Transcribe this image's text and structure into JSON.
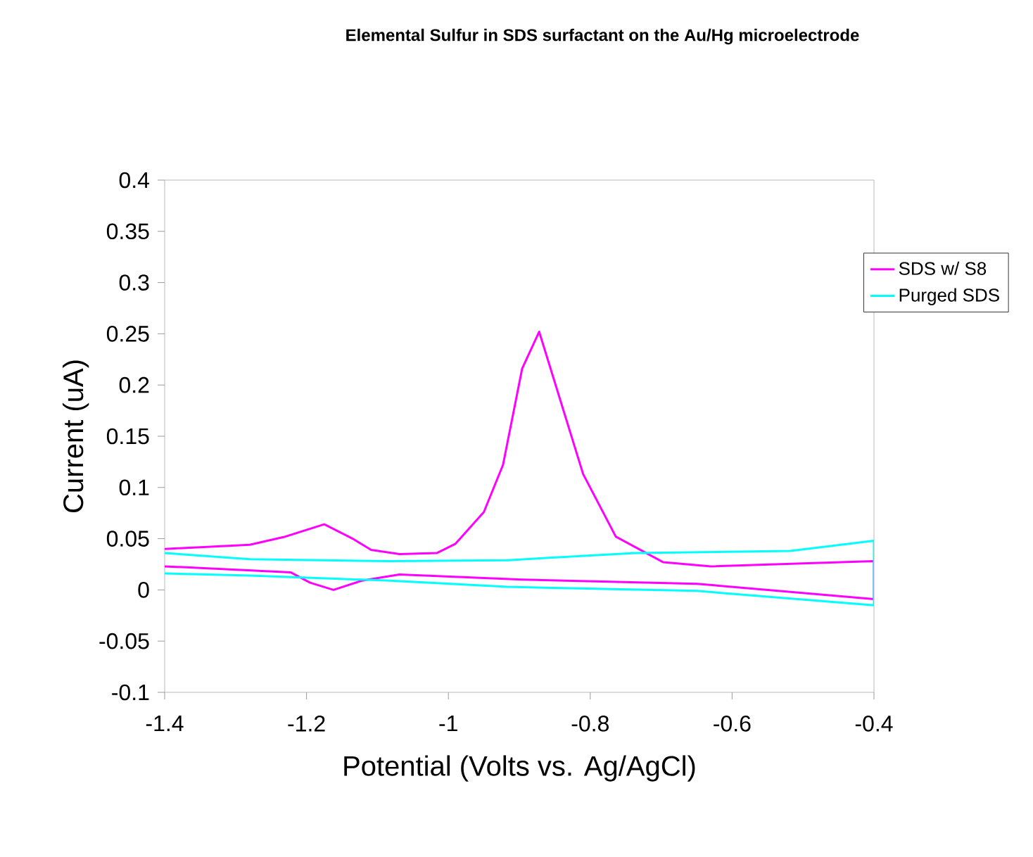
{
  "chart_data": {
    "type": "line",
    "title": "Elemental Sulfur in SDS surfactant on the Au/Hg microelectrode",
    "xlabel": "Potential (Volts vs. Ag/AgCl)",
    "ylabel": "Current (uA)",
    "xlim": [
      -1.4,
      -0.4
    ],
    "xticks": [
      -1.4,
      -1.2,
      -1,
      -0.8,
      -0.6,
      -0.4
    ],
    "ylim": [
      -0.1,
      0.4
    ],
    "yticks": [
      -0.1,
      -0.05,
      0,
      0.05,
      0.1,
      0.15,
      0.2,
      0.25,
      0.3,
      0.35,
      0.4
    ],
    "grid": false,
    "legend": "right",
    "marker": "none",
    "line_style": "solid",
    "series": [
      {
        "name": "SDS w/ S8",
        "color": "#ff00ff",
        "x": [
          -1.4,
          -1.28,
          -1.23,
          -1.175,
          -1.135,
          -1.109,
          -1.069,
          -1.016,
          -0.99,
          -0.95,
          -0.923,
          -0.896,
          -0.872,
          -0.81,
          -0.764,
          -0.697,
          -0.63,
          -0.4,
          -0.4,
          -0.65,
          -0.896,
          -1.069,
          -1.122,
          -1.162,
          -1.195,
          -1.222,
          -1.4
        ],
        "values": [
          0.04,
          0.044,
          0.052,
          0.064,
          0.05,
          0.039,
          0.035,
          0.036,
          0.045,
          0.076,
          0.122,
          0.216,
          0.252,
          0.113,
          0.052,
          0.027,
          0.023,
          0.028,
          -0.009,
          0.006,
          0.01,
          0.015,
          0.009,
          0.0,
          0.007,
          0.017,
          0.023
        ]
      },
      {
        "name": "Purged SDS",
        "color": "#00ffff",
        "x": [
          -1.4,
          -1.28,
          -1.082,
          -0.917,
          -0.737,
          -0.518,
          -0.4,
          -0.4,
          -0.65,
          -0.917,
          -1.082,
          -1.28,
          -1.4
        ],
        "values": [
          0.036,
          0.03,
          0.028,
          0.029,
          0.036,
          0.038,
          0.048,
          -0.015,
          -0.001,
          0.003,
          0.009,
          0.014,
          0.016
        ]
      }
    ]
  }
}
